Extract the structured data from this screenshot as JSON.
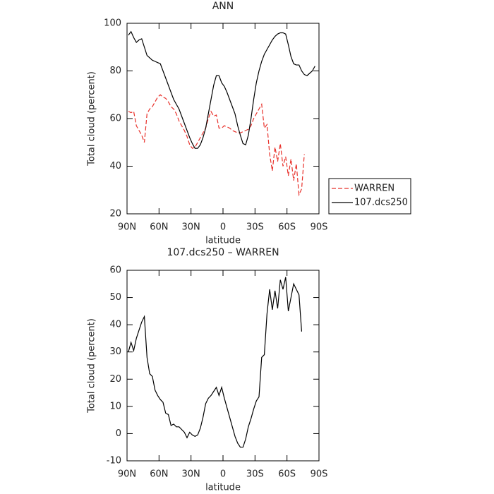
{
  "chart_data": [
    {
      "type": "line",
      "title": "ANN",
      "x_label": "latitude",
      "y_label": "Total cloud (percent)",
      "x": [
        88.75,
        86.25,
        83.75,
        81.25,
        78.75,
        76.25,
        73.75,
        71.25,
        68.75,
        66.25,
        63.75,
        61.25,
        58.75,
        56.25,
        53.75,
        51.25,
        48.75,
        46.25,
        43.75,
        41.25,
        38.75,
        36.25,
        33.75,
        31.25,
        28.75,
        26.25,
        23.75,
        21.25,
        18.75,
        16.25,
        13.75,
        11.25,
        8.75,
        6.25,
        3.75,
        1.25,
        -1.25,
        -3.75,
        -6.25,
        -8.75,
        -11.25,
        -13.75,
        -16.25,
        -18.75,
        -21.25,
        -23.75,
        -26.25,
        -28.75,
        -31.25,
        -33.75,
        -36.25,
        -38.75,
        -41.25,
        -43.75,
        -46.25,
        -48.75,
        -51.25,
        -53.75,
        -56.25,
        -58.75,
        -61.25,
        -63.75,
        -66.25,
        -68.75,
        -71.25,
        -73.75,
        -76.25,
        -78.75,
        -81.25,
        -83.75,
        -86.25,
        -88.75
      ],
      "series": [
        {
          "name": "WARREN",
          "color": "#e8302a",
          "linestyle": "dashed",
          "values": [
            63,
            62.5,
            63,
            57,
            55,
            53,
            50,
            62,
            64,
            65,
            67,
            69,
            70,
            69,
            68.5,
            67,
            65,
            64,
            62,
            59,
            57,
            55,
            52.5,
            49,
            47.5,
            48,
            50,
            52,
            54,
            56,
            60,
            63,
            61,
            61.5,
            56,
            56,
            57,
            56.5,
            56,
            55,
            54.5,
            54,
            54,
            54.5,
            55,
            55.5,
            57,
            60,
            62,
            64,
            66,
            56,
            57.5,
            45,
            38,
            48,
            42,
            49.5,
            40,
            44,
            36,
            43,
            34,
            41,
            28,
            30.5,
            45,
            null,
            null,
            null,
            null,
            null
          ]
        },
        {
          "name": "107.dcs250",
          "color": "#000000",
          "linestyle": "solid",
          "values": [
            95,
            96.5,
            94,
            92,
            93,
            93.5,
            90,
            86.5,
            85.5,
            84.5,
            84,
            83.5,
            83,
            80,
            77,
            74,
            71,
            68,
            66,
            64,
            61,
            58,
            55,
            52,
            49.5,
            47.5,
            47.5,
            49,
            52,
            56,
            62,
            68,
            74,
            78,
            78,
            75,
            73.5,
            71,
            68,
            65,
            62,
            57,
            53,
            49.5,
            49,
            53,
            60,
            68,
            75,
            80,
            84,
            87,
            89,
            91,
            93,
            94.5,
            95.5,
            96,
            96,
            95.5,
            91,
            86,
            83,
            82.5,
            82.5,
            80,
            78.5,
            78,
            79,
            80,
            82,
            null
          ]
        }
      ],
      "xlim": [
        90,
        -90
      ],
      "xticks": [
        {
          "value": 90,
          "label": "90N"
        },
        {
          "value": 60,
          "label": "60N"
        },
        {
          "value": 30,
          "label": "30N"
        },
        0,
        {
          "value": -30,
          "label": "30S"
        },
        {
          "value": -60,
          "label": "60S"
        },
        {
          "value": -90,
          "label": "90S"
        }
      ],
      "ylim": [
        20,
        100
      ],
      "yticks": [
        20,
        40,
        60,
        80,
        100
      ],
      "legend": "outside-right"
    },
    {
      "type": "line",
      "title": "107.dcs250 – WARREN",
      "x_label": "latitude",
      "y_label": "Total cloud (percent)",
      "x": [
        88.75,
        86.25,
        83.75,
        81.25,
        78.75,
        76.25,
        73.75,
        71.25,
        68.75,
        66.25,
        63.75,
        61.25,
        58.75,
        56.25,
        53.75,
        51.25,
        48.75,
        46.25,
        43.75,
        41.25,
        38.75,
        36.25,
        33.75,
        31.25,
        28.75,
        26.25,
        23.75,
        21.25,
        18.75,
        16.25,
        13.75,
        11.25,
        8.75,
        6.25,
        3.75,
        1.25,
        -1.25,
        -3.75,
        -6.25,
        -8.75,
        -11.25,
        -13.75,
        -16.25,
        -18.75,
        -21.25,
        -23.75,
        -26.25,
        -28.75,
        -31.25,
        -33.75,
        -36.25,
        -38.75,
        -41.25,
        -43.75,
        -46.25,
        -48.75,
        -51.25,
        -53.75,
        -56.25,
        -58.75,
        -61.25,
        -63.75,
        -66.25,
        -68.75,
        -71.25,
        -73.75,
        -76.25,
        -78.75,
        -81.25,
        -83.75,
        -86.25,
        -88.75
      ],
      "color": "#000000",
      "values": [
        30,
        33.5,
        30.5,
        35,
        38,
        41,
        43,
        28,
        22,
        21,
        16,
        14,
        12.5,
        11.5,
        7.5,
        7,
        3,
        3.5,
        2.5,
        2.5,
        1.5,
        0.5,
        -1.5,
        0.5,
        -0.5,
        -1,
        -0.5,
        2,
        6,
        11,
        13,
        14,
        15.5,
        17,
        14,
        17,
        13,
        9.5,
        6,
        2.5,
        -1,
        -3.5,
        -5,
        -5,
        -2,
        2.5,
        5.5,
        9,
        12,
        13.5,
        28,
        29,
        44,
        53,
        45.5,
        52.5,
        46,
        56.5,
        53,
        57.5,
        45,
        50,
        55,
        53,
        51,
        37.5,
        null,
        null,
        null,
        null,
        null,
        null
      ],
      "xlim": [
        90,
        -90
      ],
      "xticks": [
        {
          "value": 90,
          "label": "90N"
        },
        {
          "value": 60,
          "label": "60N"
        },
        {
          "value": 30,
          "label": "30N"
        },
        0,
        {
          "value": -30,
          "label": "30S"
        },
        {
          "value": -60,
          "label": "60S"
        },
        {
          "value": -90,
          "label": "90S"
        }
      ],
      "ylim": [
        -10,
        60
      ],
      "yticks": [
        -10,
        0,
        10,
        20,
        30,
        40,
        50,
        60
      ]
    }
  ]
}
